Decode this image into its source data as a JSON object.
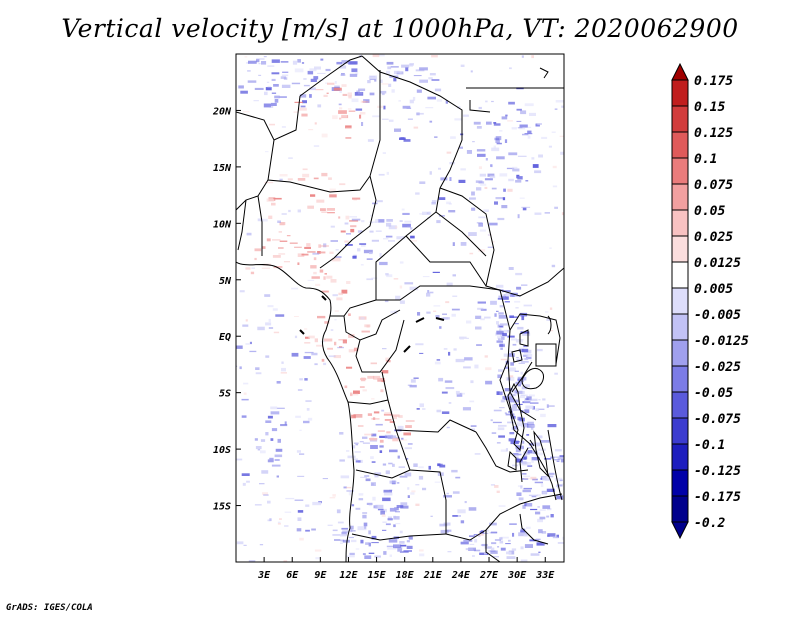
{
  "title": "Vertical velocity [m/s] at 1000hPa, VT: 2020062900",
  "footer": "GrADS: IGES/COLA",
  "map": {
    "lat_labels": [
      "20N",
      "15N",
      "10N",
      "5N",
      "EQ",
      "5S",
      "10S",
      "15S"
    ],
    "lon_labels": [
      "3E",
      "6E",
      "9E",
      "12E",
      "15E",
      "18E",
      "21E",
      "24E",
      "27E",
      "30E",
      "33E"
    ],
    "lat_range": [
      -20,
      25
    ],
    "lon_range": [
      0,
      35
    ]
  },
  "colorbar": {
    "levels": [
      "0.175",
      "0.15",
      "0.125",
      "0.1",
      "0.075",
      "0.05",
      "0.025",
      "0.0125",
      "0.005",
      "-0.005",
      "-0.0125",
      "-0.025",
      "-0.05",
      "-0.075",
      "-0.1",
      "-0.125",
      "-0.175",
      "-0.2"
    ],
    "colors": [
      "#a00000",
      "#c01e1e",
      "#d23c3c",
      "#e05a5a",
      "#ea7c7c",
      "#f2a0a0",
      "#f8c2c2",
      "#fbdede",
      "#ffffff",
      "#dedefb",
      "#c2c2f5",
      "#a0a0ee",
      "#7c7ce6",
      "#5a5adc",
      "#3c3cd0",
      "#1e1ebe",
      "#0000a8",
      "#00008c"
    ]
  }
}
